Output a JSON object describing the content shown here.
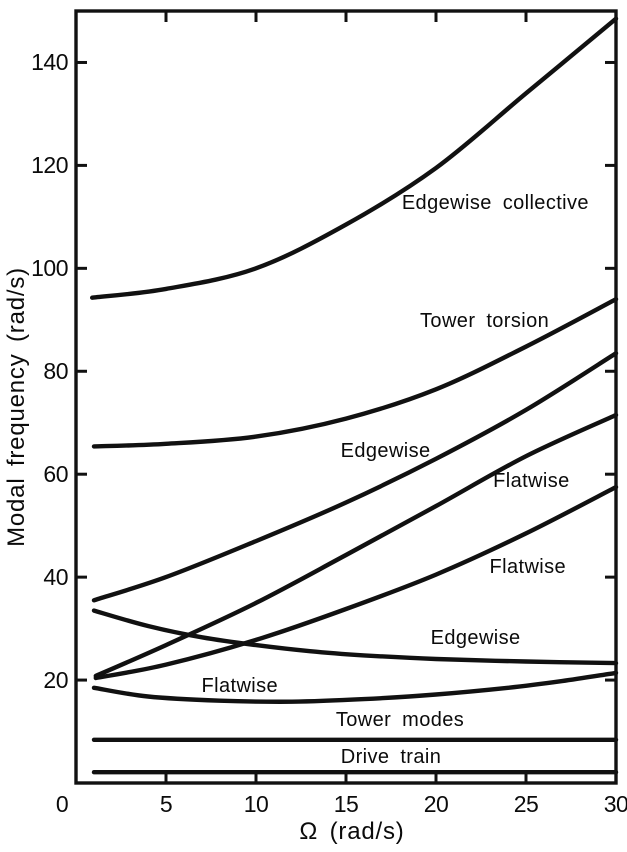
{
  "chart_data": {
    "type": "line",
    "title": "",
    "xlabel": "Ω (rad/s)",
    "ylabel": "Modal frequency (rad/s)",
    "xlim": [
      0,
      30
    ],
    "ylim": [
      0,
      150
    ],
    "x_ticks": [
      0,
      5,
      10,
      15,
      20,
      25,
      30
    ],
    "y_ticks": [
      20,
      40,
      60,
      80,
      100,
      120,
      140
    ],
    "grid": false,
    "legend": "none",
    "background_color": "#ffffff",
    "line_color": "#111111",
    "axis_color": "#111111",
    "series": [
      {
        "name": "Edgewise collective",
        "points": [
          [
            0.9,
            94.3
          ],
          [
            5,
            96
          ],
          [
            10,
            100
          ],
          [
            15,
            108.5
          ],
          [
            20,
            119.5
          ],
          [
            25,
            134
          ],
          [
            30,
            148.5
          ]
        ]
      },
      {
        "name": "Tower torsion",
        "points": [
          [
            1,
            65.4
          ],
          [
            5,
            65.9
          ],
          [
            10,
            67.3
          ],
          [
            15,
            70.8
          ],
          [
            20,
            76.5
          ],
          [
            25,
            84.8
          ],
          [
            30,
            94
          ]
        ]
      },
      {
        "name": "Edgewise (rising)",
        "points": [
          [
            1,
            35.5
          ],
          [
            5,
            40
          ],
          [
            10,
            47
          ],
          [
            15,
            54.5
          ],
          [
            20,
            63
          ],
          [
            25,
            72.5
          ],
          [
            30,
            83.5
          ]
        ]
      },
      {
        "name": "Flatwise (upper)",
        "points": [
          [
            1.1,
            20.8
          ],
          [
            5,
            26.8
          ],
          [
            10,
            35
          ],
          [
            15,
            44.3
          ],
          [
            20,
            53.8
          ],
          [
            25,
            63.5
          ],
          [
            30,
            71.5
          ]
        ]
      },
      {
        "name": "Flatwise (middle)",
        "points": [
          [
            1.1,
            20.4
          ],
          [
            5,
            23
          ],
          [
            10,
            27.8
          ],
          [
            15,
            33.8
          ],
          [
            20,
            40.5
          ],
          [
            25,
            48.5
          ],
          [
            30,
            57.5
          ]
        ]
      },
      {
        "name": "Edgewise (declining)",
        "points": [
          [
            1,
            33.5
          ],
          [
            4,
            30.5
          ],
          [
            7,
            28.3
          ],
          [
            10,
            26.8
          ],
          [
            13,
            25.6
          ],
          [
            16,
            24.8
          ],
          [
            20,
            24.1
          ],
          [
            25,
            23.6
          ],
          [
            30,
            23.3
          ]
        ]
      },
      {
        "name": "Flatwise (lower)",
        "points": [
          [
            1,
            18.5
          ],
          [
            4,
            16.8
          ],
          [
            8,
            16
          ],
          [
            12,
            15.8
          ],
          [
            16,
            16.3
          ],
          [
            20,
            17.2
          ],
          [
            24,
            18.5
          ],
          [
            27,
            19.8
          ],
          [
            30,
            21.4
          ]
        ]
      },
      {
        "name": "Tower modes",
        "points": [
          [
            1,
            8.4
          ],
          [
            15,
            8.4
          ],
          [
            30,
            8.4
          ]
        ]
      },
      {
        "name": "Drive train",
        "points": [
          [
            1,
            2.1
          ],
          [
            15,
            2.1
          ],
          [
            30,
            2.1
          ]
        ]
      }
    ],
    "annotations": [
      {
        "text": "Edgewise collective",
        "x": 23.3,
        "y": 112.7
      },
      {
        "text": "Tower torsion",
        "x": 22.7,
        "y": 89.8
      },
      {
        "text": "Edgewise",
        "x": 17.2,
        "y": 64.5
      },
      {
        "text": "Flatwise",
        "x": 25.3,
        "y": 58.7
      },
      {
        "text": "Flatwise",
        "x": 25.1,
        "y": 42.0
      },
      {
        "text": "Edgewise",
        "x": 22.2,
        "y": 28.2
      },
      {
        "text": "Flatwise",
        "x": 9.1,
        "y": 18.9
      },
      {
        "text": "Tower modes",
        "x": 18.0,
        "y": 12.3
      },
      {
        "text": "Drive train",
        "x": 17.5,
        "y": 5.0
      }
    ]
  }
}
